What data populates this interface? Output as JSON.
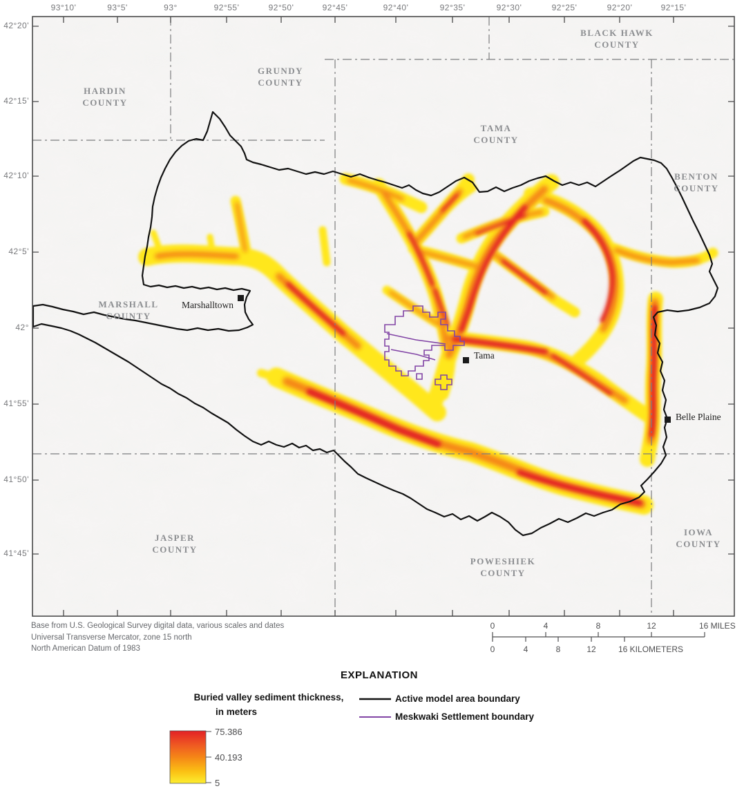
{
  "map": {
    "lon_labels": [
      "93°10'",
      "93°5'",
      "93°",
      "92°55'",
      "92°50'",
      "92°45'",
      "92°40'",
      "92°35'",
      "92°30'",
      "92°25'",
      "92°20'",
      "92°15'"
    ],
    "lat_labels": [
      "42°20'",
      "42°15'",
      "42°10'",
      "42°5'",
      "42°",
      "41°55'",
      "41°50'",
      "41°45'"
    ],
    "counties": [
      {
        "line1": "HARDIN",
        "line2": "COUNTY"
      },
      {
        "line1": "GRUNDY",
        "line2": "COUNTY"
      },
      {
        "line1": "BLACK HAWK",
        "line2": "COUNTY"
      },
      {
        "line1": "TAMA",
        "line2": "COUNTY"
      },
      {
        "line1": "BENTON",
        "line2": "COUNTY"
      },
      {
        "line1": "MARSHALL",
        "line2": "COUNTY"
      },
      {
        "line1": "JASPER",
        "line2": "COUNTY"
      },
      {
        "line1": "POWESHIEK",
        "line2": "COUNTY"
      },
      {
        "line1": "IOWA",
        "line2": "COUNTY"
      }
    ],
    "cities": [
      {
        "name": "Marshalltown"
      },
      {
        "name": "Tama"
      },
      {
        "name": "Belle Plaine"
      }
    ]
  },
  "credits": {
    "line1": "Base from U.S. Geological Survey digital data, various scales and dates",
    "line2": "Universal Transverse Mercator, zone 15 north",
    "line3": "North American Datum of 1983"
  },
  "scalebar": {
    "miles_labels": [
      "0",
      "4",
      "8",
      "12"
    ],
    "miles_end_label": "16 MILES",
    "km_labels": [
      "0",
      "4",
      "8",
      "12"
    ],
    "km_end_label": "16 KILOMETERS"
  },
  "explanation": {
    "heading": "EXPLANATION",
    "ramp_title_line1": "Buried valley sediment thickness,",
    "ramp_title_line2": "in meters",
    "ramp_max": "75.386",
    "ramp_mid": "40.193",
    "ramp_min": "5",
    "legend_items": [
      {
        "label": "Active model area boundary"
      },
      {
        "label": "Meskwaki Settlement boundary"
      }
    ]
  },
  "colors": {
    "valley_yellow": "#ffe71f",
    "valley_orange": "#f58617",
    "valley_red": "#e32126",
    "ramp_top": "#e32126",
    "ramp_upper": "#ef5b22",
    "ramp_mid": "#f58617",
    "ramp_lower": "#fbc214",
    "ramp_bottom": "#fdee30",
    "model_boundary": "#111111",
    "meskwaki_boundary": "#8144a5",
    "county_line": "#7b7c7e",
    "frame": "#4a4a4b"
  }
}
